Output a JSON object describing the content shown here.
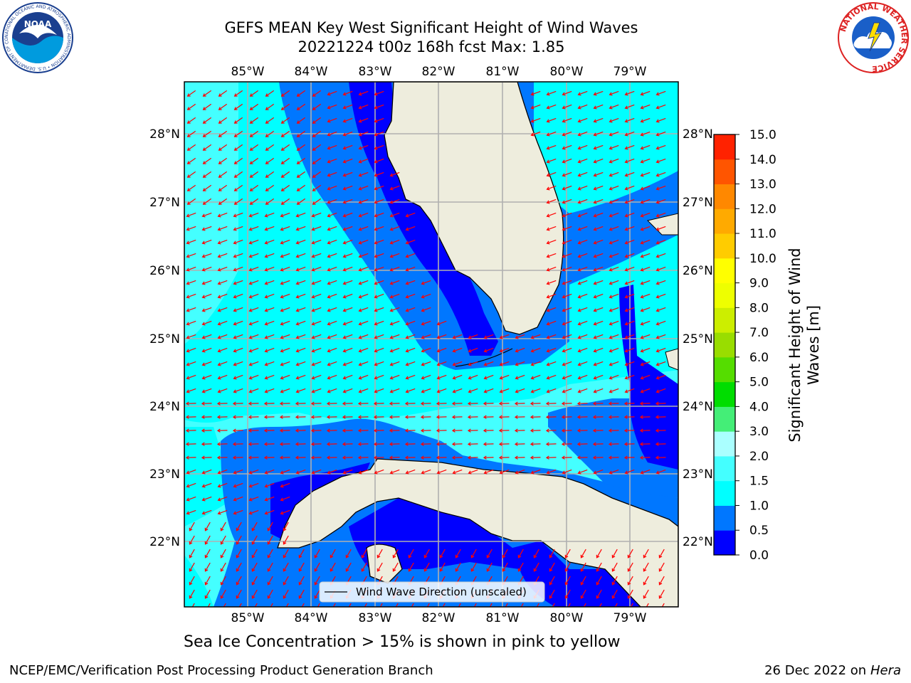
{
  "title_line1": "GEFS MEAN Key West Significant Height of Wind Waves",
  "title_line2": "20221224 t00z 168h fcst   Max: 1.85",
  "lon_labels": [
    "85°W",
    "84°W",
    "83°W",
    "82°W",
    "81°W",
    "80°W",
    "79°W"
  ],
  "lat_labels": [
    "28°N",
    "27°N",
    "26°N",
    "25°N",
    "24°N",
    "23°N",
    "22°N"
  ],
  "legend_text": "Wind Wave Direction (unscaled)",
  "colorbar": {
    "label": "Significant Height of Wind Waves [m]",
    "ticks": [
      "15.0",
      "14.0",
      "13.0",
      "12.0",
      "11.0",
      "10.0",
      "9.0",
      "8.0",
      "7.0",
      "6.0",
      "5.0",
      "4.0",
      "3.0",
      "2.0",
      "1.5",
      "1.0",
      "0.5",
      "0.0"
    ],
    "colors": [
      "#0000ff",
      "#0077ff",
      "#00ffff",
      "#44ffff",
      "#aaffff",
      "#44ee77",
      "#00dd00",
      "#55dd00",
      "#99dd00",
      "#ccee00",
      "#eeff00",
      "#ffff00",
      "#ffcc00",
      "#ffaa00",
      "#ff8800",
      "#ff5500",
      "#ff2200"
    ]
  },
  "subtitle": "Sea Ice Concentration > 15% is shown in pink to yellow",
  "footer_left": "NCEP/EMC/Verification Post Processing Product Generation Branch",
  "footer_right_date": "26 Dec 2022 on",
  "footer_right_host": "Hera",
  "logos": {
    "noaa_text": "NOAA",
    "noaa_ring": "NATIONAL OCEANIC AND ATMOSPHERIC ADMINISTRATION • U.S. DEPARTMENT OF COMMERCE •",
    "nws_ring": "NATIONAL WEATHER SERVICE"
  },
  "colors": {
    "land": "#eeeddd",
    "wave_0": "#0000ff",
    "wave_05": "#0077ff",
    "wave_1": "#00ffff",
    "wave_15": "#44ffff",
    "arrow": "#ff0000",
    "grid": "#b0b0b0"
  }
}
